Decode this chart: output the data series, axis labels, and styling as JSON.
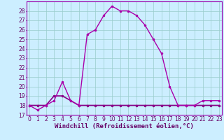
{
  "xlabel": "Windchill (Refroidissement éolien,°C)",
  "hours": [
    0,
    1,
    2,
    3,
    4,
    5,
    6,
    7,
    8,
    9,
    10,
    11,
    12,
    13,
    14,
    15,
    16,
    17,
    18,
    19,
    20,
    21,
    22,
    23
  ],
  "windchill": [
    18,
    17.5,
    18,
    18.5,
    20.5,
    18.5,
    18,
    25.5,
    26,
    27.5,
    28.5,
    28,
    28,
    27.5,
    26.5,
    25,
    23.5,
    20,
    18,
    18,
    18,
    18.5,
    18.5,
    18.5
  ],
  "temperature": [
    18,
    18,
    18,
    19,
    19,
    18.5,
    18,
    18,
    18,
    18,
    18,
    18,
    18,
    18,
    18,
    18,
    18,
    18,
    18,
    18,
    18,
    18,
    18,
    18
  ],
  "line_color": "#880088",
  "line_color2": "#aa00aa",
  "bg_color": "#cceeff",
  "grid_color": "#99cccc",
  "ylim": [
    17,
    29
  ],
  "yticks": [
    17,
    18,
    19,
    20,
    21,
    22,
    23,
    24,
    25,
    26,
    27,
    28
  ],
  "xticks": [
    0,
    1,
    2,
    3,
    4,
    5,
    6,
    7,
    8,
    9,
    10,
    11,
    12,
    13,
    14,
    15,
    16,
    17,
    18,
    19,
    20,
    21,
    22,
    23
  ],
  "tick_fontsize": 5.5,
  "xlabel_fontsize": 6.5
}
